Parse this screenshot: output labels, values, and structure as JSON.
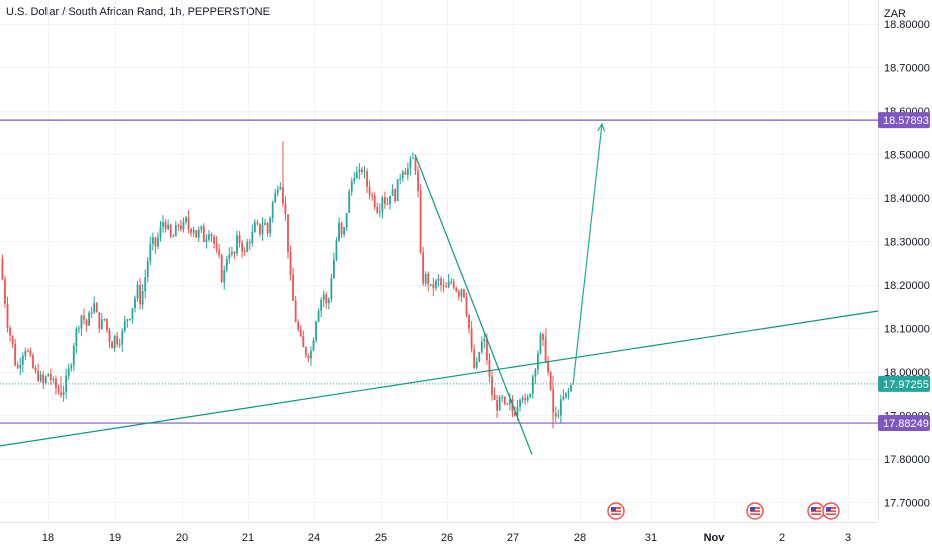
{
  "chart_data": {
    "type": "candlestick",
    "title": "U.S. Dollar / South African Rand, 1h, PEPPERSTONE",
    "currency": "ZAR",
    "ylim": [
      17.655,
      18.855
    ],
    "y_ticks": [
      "18.80000",
      "18.70000",
      "18.60000",
      "18.50000",
      "18.40000",
      "18.30000",
      "18.20000",
      "18.10000",
      "18.00000",
      "17.90000",
      "17.80000",
      "17.70000"
    ],
    "x_ticks": [
      "18",
      "19",
      "20",
      "21",
      "24",
      "25",
      "26",
      "27",
      "28",
      "31",
      "Nov",
      "2",
      "3"
    ],
    "x_tick_bold": [
      "Nov"
    ],
    "grid": true,
    "price_tags": [
      {
        "label": "18.57893",
        "value": 18.57893,
        "color": "#7e57c2"
      },
      {
        "label": "17.97255",
        "value": 17.97255,
        "color": "#26a69a"
      },
      {
        "label": "17.88249",
        "value": 17.88249,
        "color": "#7e57c2"
      }
    ],
    "candle_path": [
      [
        0,
        18.26
      ],
      [
        3,
        18.21
      ],
      [
        8,
        18.11
      ],
      [
        13,
        18.06
      ],
      [
        17,
        18.0
      ],
      [
        21,
        18.03
      ],
      [
        25,
        18.06
      ],
      [
        29,
        18.04
      ],
      [
        33,
        18.01
      ],
      [
        37,
        17.99
      ],
      [
        40,
        17.99
      ],
      [
        44,
        17.97
      ],
      [
        48,
        18.0
      ],
      [
        52,
        17.98
      ],
      [
        57,
        17.96
      ],
      [
        60,
        17.95
      ],
      [
        64,
        17.96
      ],
      [
        68,
        17.99
      ],
      [
        72,
        18.03
      ],
      [
        75,
        18.08
      ],
      [
        79,
        18.11
      ],
      [
        83,
        18.14
      ],
      [
        86,
        18.1
      ],
      [
        90,
        18.13
      ],
      [
        94,
        18.16
      ],
      [
        97,
        18.13
      ],
      [
        101,
        18.1
      ],
      [
        104,
        18.13
      ],
      [
        108,
        18.09
      ],
      [
        112,
        18.06
      ],
      [
        115,
        18.08
      ],
      [
        119,
        18.07
      ],
      [
        123,
        18.09
      ],
      [
        126,
        18.12
      ],
      [
        130,
        18.13
      ],
      [
        134,
        18.16
      ],
      [
        138,
        18.19
      ],
      [
        141,
        18.16
      ],
      [
        145,
        18.21
      ],
      [
        149,
        18.27
      ],
      [
        152,
        18.3
      ],
      [
        156,
        18.29
      ],
      [
        160,
        18.32
      ],
      [
        164,
        18.35
      ],
      [
        168,
        18.33
      ],
      [
        172,
        18.3
      ],
      [
        175,
        18.32
      ],
      [
        179,
        18.34
      ],
      [
        183,
        18.33
      ],
      [
        187,
        18.35
      ],
      [
        190,
        18.32
      ],
      [
        193,
        18.34
      ],
      [
        197,
        18.31
      ],
      [
        201,
        18.33
      ],
      [
        205,
        18.3
      ],
      [
        209,
        18.33
      ],
      [
        213,
        18.31
      ],
      [
        217,
        18.27
      ],
      [
        221,
        18.25
      ],
      [
        223,
        18.19
      ],
      [
        226,
        18.26
      ],
      [
        230,
        18.28
      ],
      [
        234,
        18.26
      ],
      [
        238,
        18.31
      ],
      [
        242,
        18.29
      ],
      [
        245,
        18.27
      ],
      [
        248,
        18.3
      ],
      [
        252,
        18.31
      ],
      [
        256,
        18.34
      ],
      [
        260,
        18.32
      ],
      [
        264,
        18.35
      ],
      [
        268,
        18.32
      ],
      [
        272,
        18.38
      ],
      [
        276,
        18.41
      ],
      [
        280,
        18.45
      ],
      [
        283,
        18.4
      ],
      [
        285,
        18.38
      ],
      [
        287,
        18.33
      ],
      [
        290,
        18.23
      ],
      [
        293,
        18.17
      ],
      [
        296,
        18.12
      ],
      [
        300,
        18.08
      ],
      [
        304,
        18.05
      ],
      [
        308,
        18.04
      ],
      [
        312,
        18.05
      ],
      [
        316,
        18.12
      ],
      [
        320,
        18.16
      ],
      [
        324,
        18.18
      ],
      [
        328,
        18.14
      ],
      [
        331,
        18.21
      ],
      [
        335,
        18.27
      ],
      [
        339,
        18.34
      ],
      [
        343,
        18.3
      ],
      [
        347,
        18.37
      ],
      [
        351,
        18.43
      ],
      [
        355,
        18.46
      ],
      [
        359,
        18.45
      ],
      [
        363,
        18.47
      ],
      [
        367,
        18.43
      ],
      [
        371,
        18.41
      ],
      [
        375,
        18.39
      ],
      [
        379,
        18.37
      ],
      [
        383,
        18.41
      ],
      [
        387,
        18.38
      ],
      [
        391,
        18.42
      ],
      [
        395,
        18.4
      ],
      [
        399,
        18.44
      ],
      [
        403,
        18.47
      ],
      [
        407,
        18.46
      ],
      [
        411,
        18.48
      ],
      [
        414,
        18.49
      ],
      [
        417,
        18.46
      ],
      [
        419,
        18.39
      ],
      [
        420,
        18.29
      ],
      [
        423,
        18.21
      ],
      [
        427,
        18.22
      ],
      [
        431,
        18.19
      ],
      [
        435,
        18.2
      ],
      [
        439,
        18.21
      ],
      [
        443,
        18.19
      ],
      [
        447,
        18.19
      ],
      [
        451,
        18.21
      ],
      [
        455,
        18.2
      ],
      [
        459,
        18.18
      ],
      [
        463,
        18.2
      ],
      [
        467,
        18.14
      ],
      [
        470,
        18.09
      ],
      [
        473,
        18.02
      ],
      [
        476,
        18.0
      ],
      [
        480,
        18.05
      ],
      [
        484,
        18.08
      ],
      [
        488,
        18.02
      ],
      [
        491,
        17.96
      ],
      [
        495,
        17.93
      ],
      [
        498,
        17.92
      ],
      [
        502,
        17.94
      ],
      [
        506,
        17.91
      ],
      [
        510,
        17.93
      ],
      [
        514,
        17.9
      ],
      [
        518,
        17.93
      ],
      [
        522,
        17.96
      ],
      [
        526,
        17.92
      ],
      [
        530,
        17.95
      ],
      [
        533,
        17.99
      ],
      [
        537,
        18.03
      ],
      [
        541,
        18.08
      ],
      [
        545,
        18.05
      ],
      [
        549,
        17.99
      ],
      [
        553,
        17.91
      ],
      [
        556,
        17.89
      ],
      [
        560,
        17.92
      ],
      [
        564,
        17.94
      ],
      [
        568,
        17.95
      ],
      [
        572,
        17.97
      ]
    ],
    "lines": [
      {
        "name": "resistance",
        "color": "#7e57c2",
        "x1": 0,
        "y1": 18.57893,
        "x2": 878,
        "y2": 18.57893
      },
      {
        "name": "support",
        "color": "#7e57c2",
        "x1": 0,
        "y1": 17.88249,
        "x2": 878,
        "y2": 17.88249
      },
      {
        "name": "rising-trendline",
        "color": "#089981",
        "x1": 0,
        "y1": 17.83,
        "x2": 878,
        "y2": 18.14
      },
      {
        "name": "falling-trendline",
        "color": "#089981",
        "x1": 415,
        "y1": 18.5,
        "x2": 532,
        "y2": 17.81
      },
      {
        "name": "projection-arrow",
        "color": "#22ab94",
        "x1": 573,
        "y1": 17.97,
        "x2": 602,
        "y2": 18.57
      },
      {
        "name": "current-price-line",
        "color": "#26a69a",
        "x1": 0,
        "y1": 17.97255,
        "x2": 878,
        "y2": 17.97255,
        "dotted": true
      }
    ],
    "event_markers": [
      {
        "name": "us-flag-event-icon",
        "x": 616
      },
      {
        "name": "us-flag-event-icon",
        "x": 755
      },
      {
        "name": "us-flag-event-icon",
        "x": 816
      },
      {
        "name": "us-flag-event-icon",
        "x": 831
      }
    ],
    "colors": {
      "up": "#26a69a",
      "down": "#ef5350",
      "grid": "#f0f3fa",
      "axis_border": "#e0e3eb"
    }
  }
}
